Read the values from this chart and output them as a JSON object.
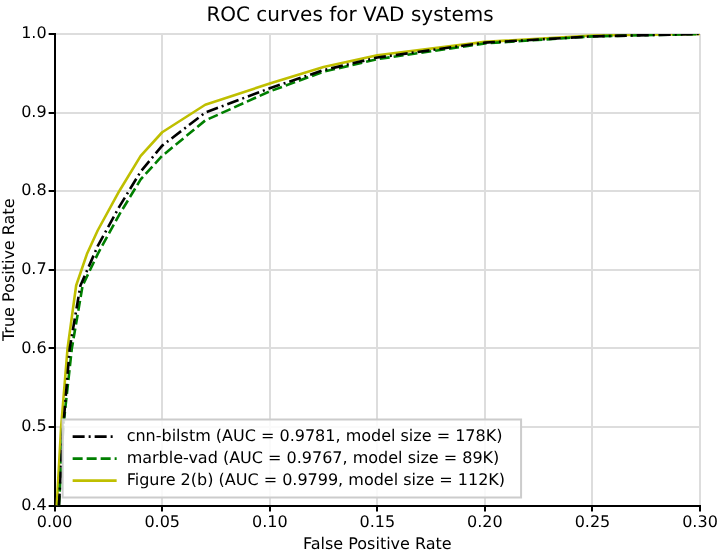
{
  "chart_data": {
    "type": "line",
    "title": "ROC curves for VAD systems",
    "xlabel": "False Positive Rate",
    "ylabel": "True Positive Rate",
    "xlim": [
      0,
      0.3
    ],
    "ylim": [
      0.4,
      1.0
    ],
    "xticks": [
      {
        "value": 0,
        "label": "0.00"
      },
      {
        "value": 0.05,
        "label": "0.05"
      },
      {
        "value": 0.1,
        "label": "0.10"
      },
      {
        "value": 0.15,
        "label": "0.15"
      },
      {
        "value": 0.2,
        "label": "0.20"
      },
      {
        "value": 0.25,
        "label": "0.25"
      },
      {
        "value": 0.3,
        "label": "0.30"
      }
    ],
    "yticks": [
      0.4,
      0.5,
      0.6,
      0.7,
      0.8,
      0.9,
      {
        "value": 1,
        "label": "1.0"
      }
    ],
    "grid": true,
    "legend": "bottom left",
    "marker": "none",
    "series": [
      {
        "name": "cnn-bilstm (AUC = 0.9781, model size = 178K)",
        "color": "#000000",
        "line_style": "dashdot",
        "x": [
          0.002,
          0.004,
          0.007,
          0.012,
          0.02,
          0.03,
          0.04,
          0.05,
          0.07,
          0.1,
          0.125,
          0.15,
          0.2,
          0.25,
          0.3
        ],
        "values": [
          0.4,
          0.5,
          0.6,
          0.68,
          0.73,
          0.78,
          0.825,
          0.858,
          0.9,
          0.931,
          0.954,
          0.97,
          0.989,
          0.997,
          1.0
        ]
      },
      {
        "name": "marble-vad (AUC = 0.9767, model size = 89K)",
        "color": "#007f00",
        "line_style": "dashed",
        "x": [
          0.002,
          0.004,
          0.008,
          0.013,
          0.02,
          0.03,
          0.04,
          0.05,
          0.07,
          0.1,
          0.125,
          0.15,
          0.2,
          0.25,
          0.3
        ],
        "values": [
          0.4,
          0.5,
          0.6,
          0.68,
          0.72,
          0.77,
          0.815,
          0.845,
          0.89,
          0.927,
          0.952,
          0.968,
          0.988,
          0.997,
          1.0
        ]
      },
      {
        "name": "Figure 2(b) (AUC = 0.9799, model size = 112K)",
        "color": "#bfbf00",
        "line_style": "solid",
        "x": [
          0.001,
          0.003,
          0.006,
          0.01,
          0.015,
          0.02,
          0.03,
          0.04,
          0.05,
          0.07,
          0.1,
          0.125,
          0.15,
          0.2,
          0.25,
          0.3
        ],
        "values": [
          0.4,
          0.5,
          0.6,
          0.68,
          0.72,
          0.75,
          0.8,
          0.845,
          0.875,
          0.91,
          0.937,
          0.958,
          0.973,
          0.99,
          0.998,
          1.0
        ]
      }
    ]
  }
}
